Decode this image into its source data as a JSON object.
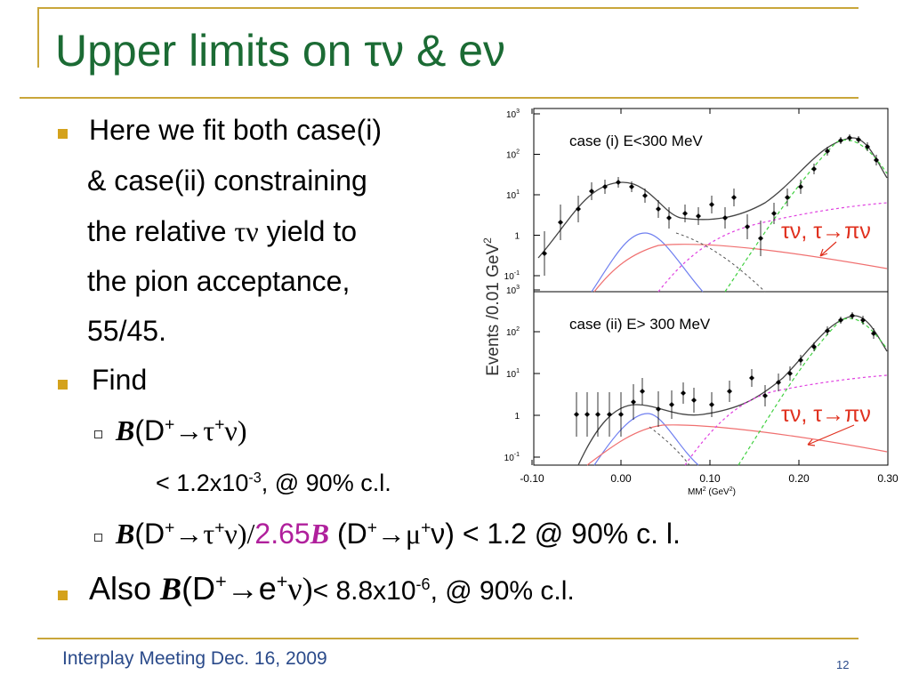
{
  "title": "Upper limits on τν & eν",
  "bullets": [
    {
      "lines": [
        [
          "Here we fit both case(i)"
        ],
        [
          "& case(ii) constraining"
        ],
        [
          "the relative ",
          "τν",
          " yield to"
        ],
        [
          "the pion acceptance,"
        ],
        [
          "55/45."
        ]
      ]
    },
    {
      "lines": [
        [
          "Find"
        ]
      ],
      "sub": [
        {
          "parts": [
            "B",
            "(D",
            "+",
            "→τ",
            "+",
            "ν)"
          ],
          "detail": [
            "< 1.2x10",
            "-3",
            ", @ 90% c.l."
          ]
        },
        {
          "parts": [
            "B",
            "(D",
            "+",
            "→τ",
            "+",
            "ν)/",
            "2.65",
            "B",
            " (D",
            "+",
            "→μ",
            "+",
            "ν) < 1.2 @ 90% c. l."
          ]
        }
      ]
    },
    {
      "parts": [
        "Also ",
        "B",
        "(D",
        "+",
        "→e",
        "+",
        "ν)",
        "< 8.8x10",
        "-6",
        ", @ 90% c.l."
      ]
    }
  ],
  "figure": {
    "y_label": [
      "Events /0.01 GeV",
      "2"
    ],
    "x_label": [
      "MM",
      "2",
      " (GeV",
      "2",
      ")"
    ],
    "x_ticks": [
      "-0.10",
      "0.00",
      "0.10",
      "0.20",
      "0.30"
    ],
    "y_ticks": [
      [
        "10",
        "3"
      ],
      [
        "10",
        "2"
      ],
      [
        "10",
        "1"
      ],
      [
        "1",
        ""
      ],
      [
        "10",
        "-1"
      ]
    ],
    "panels": [
      {
        "label": "case (i) E<300 MeV",
        "annotation": "τν, τ→πν"
      },
      {
        "label": "case (ii) E> 300 MeV",
        "annotation": "τν, τ→πν"
      }
    ]
  },
  "footer": {
    "text": "Interplay Meeting Dec. 16, 2009",
    "page": "12"
  }
}
